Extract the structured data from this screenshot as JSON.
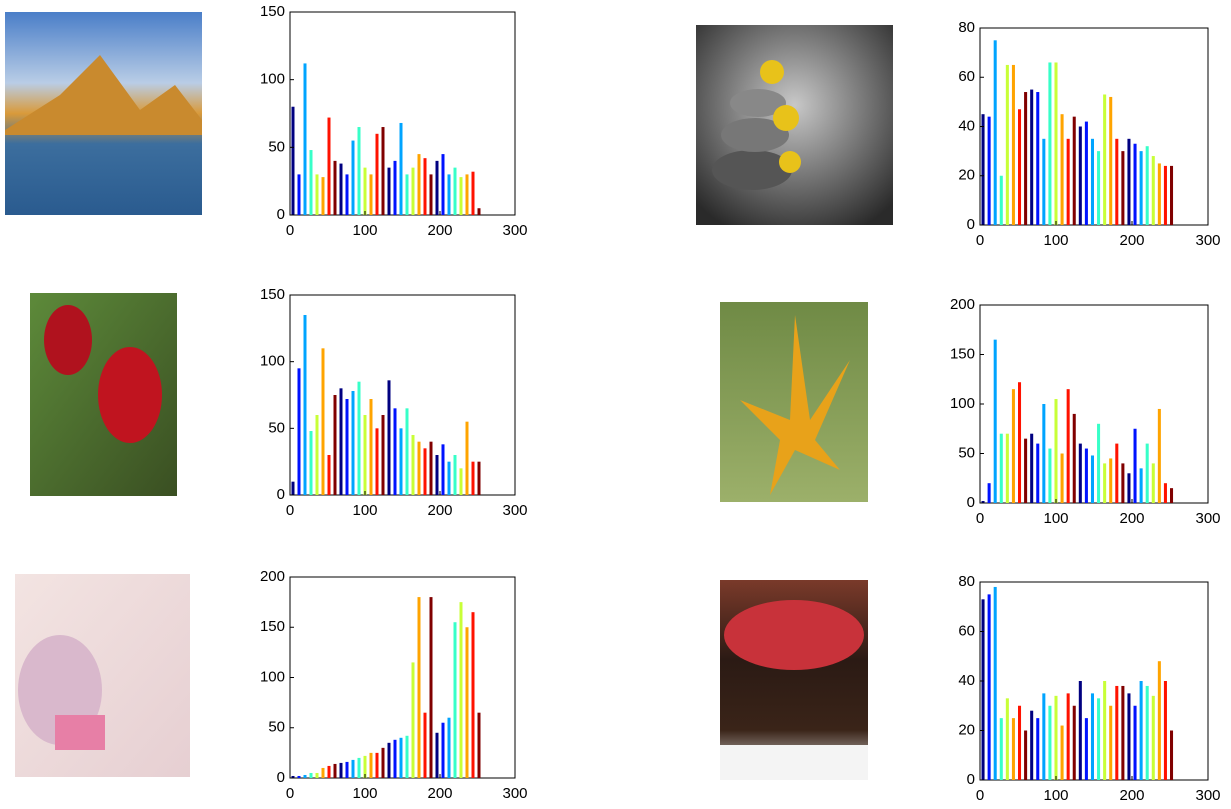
{
  "chart_data": [
    {
      "type": "bar",
      "colormap": "jet",
      "x": [
        4,
        12,
        20,
        28,
        36,
        44,
        52,
        60,
        68,
        76,
        84,
        92,
        100,
        108,
        116,
        124,
        132,
        140,
        148,
        156,
        164,
        172,
        180,
        188,
        196,
        204,
        212,
        220,
        228,
        236,
        244,
        252
      ],
      "values": [
        80,
        30,
        112,
        48,
        30,
        28,
        72,
        40,
        38,
        30,
        55,
        65,
        35,
        30,
        60,
        65,
        35,
        40,
        68,
        30,
        35,
        45,
        42,
        30,
        40,
        45,
        30,
        35,
        28,
        30,
        32,
        5
      ],
      "xlim": [
        0,
        300
      ],
      "ylim": [
        0,
        150
      ],
      "xticks": [
        0,
        100,
        200,
        300
      ],
      "yticks": [
        0,
        50,
        100,
        150
      ]
    },
    {
      "type": "bar",
      "colormap": "jet",
      "x": [
        4,
        12,
        20,
        28,
        36,
        44,
        52,
        60,
        68,
        76,
        84,
        92,
        100,
        108,
        116,
        124,
        132,
        140,
        148,
        156,
        164,
        172,
        180,
        188,
        196,
        204,
        212,
        220,
        228,
        236,
        244,
        252
      ],
      "values": [
        45,
        44,
        75,
        20,
        65,
        65,
        47,
        54,
        55,
        54,
        35,
        66,
        66,
        45,
        35,
        44,
        40,
        42,
        35,
        30,
        53,
        52,
        35,
        30,
        35,
        33,
        30,
        32,
        28,
        25,
        24,
        24
      ],
      "xlim": [
        0,
        300
      ],
      "ylim": [
        0,
        80
      ],
      "xticks": [
        0,
        100,
        200,
        300
      ],
      "yticks": [
        0,
        20,
        40,
        60,
        80
      ]
    },
    {
      "type": "bar",
      "colormap": "jet",
      "x": [
        4,
        12,
        20,
        28,
        36,
        44,
        52,
        60,
        68,
        76,
        84,
        92,
        100,
        108,
        116,
        124,
        132,
        140,
        148,
        156,
        164,
        172,
        180,
        188,
        196,
        204,
        212,
        220,
        228,
        236,
        244,
        252
      ],
      "values": [
        10,
        95,
        135,
        48,
        60,
        110,
        30,
        75,
        80,
        72,
        78,
        85,
        60,
        72,
        50,
        60,
        86,
        65,
        50,
        65,
        45,
        40,
        35,
        40,
        30,
        38,
        25,
        30,
        20,
        55,
        25,
        25
      ],
      "xlim": [
        0,
        300
      ],
      "ylim": [
        0,
        150
      ],
      "xticks": [
        0,
        100,
        200,
        300
      ],
      "yticks": [
        0,
        50,
        100,
        150
      ]
    },
    {
      "type": "bar",
      "colormap": "jet",
      "x": [
        4,
        12,
        20,
        28,
        36,
        44,
        52,
        60,
        68,
        76,
        84,
        92,
        100,
        108,
        116,
        124,
        132,
        140,
        148,
        156,
        164,
        172,
        180,
        188,
        196,
        204,
        212,
        220,
        228,
        236,
        244,
        252
      ],
      "values": [
        2,
        20,
        165,
        70,
        70,
        115,
        122,
        65,
        70,
        60,
        100,
        55,
        105,
        50,
        115,
        90,
        60,
        55,
        48,
        80,
        40,
        45,
        60,
        40,
        30,
        75,
        35,
        60,
        40,
        95,
        20,
        15
      ],
      "xlim": [
        0,
        300
      ],
      "ylim": [
        0,
        200
      ],
      "xticks": [
        0,
        100,
        200,
        300
      ],
      "yticks": [
        0,
        50,
        100,
        150,
        200
      ]
    },
    {
      "type": "bar",
      "colormap": "jet",
      "x": [
        4,
        12,
        20,
        28,
        36,
        44,
        52,
        60,
        68,
        76,
        84,
        92,
        100,
        108,
        116,
        124,
        132,
        140,
        148,
        156,
        164,
        172,
        180,
        188,
        196,
        204,
        212,
        220,
        228,
        236,
        244,
        252
      ],
      "values": [
        2,
        2,
        3,
        5,
        5,
        10,
        12,
        14,
        15,
        16,
        18,
        20,
        22,
        25,
        25,
        30,
        35,
        38,
        40,
        42,
        115,
        180,
        65,
        180,
        45,
        55,
        60,
        155,
        175,
        150,
        165,
        65
      ],
      "xlim": [
        0,
        300
      ],
      "ylim": [
        0,
        200
      ],
      "xticks": [
        0,
        100,
        200,
        300
      ],
      "yticks": [
        0,
        50,
        100,
        150,
        200
      ]
    },
    {
      "type": "bar",
      "colormap": "jet",
      "x": [
        4,
        12,
        20,
        28,
        36,
        44,
        52,
        60,
        68,
        76,
        84,
        92,
        100,
        108,
        116,
        124,
        132,
        140,
        148,
        156,
        164,
        172,
        180,
        188,
        196,
        204,
        212,
        220,
        228,
        236,
        244,
        252
      ],
      "values": [
        73,
        75,
        78,
        25,
        33,
        25,
        30,
        20,
        28,
        25,
        35,
        30,
        34,
        22,
        35,
        30,
        40,
        25,
        35,
        33,
        40,
        30,
        38,
        38,
        35,
        30,
        40,
        38,
        34,
        48,
        40,
        20
      ],
      "xlim": [
        0,
        300
      ],
      "ylim": [
        0,
        80
      ],
      "xticks": [
        0,
        100,
        200,
        300
      ],
      "yticks": [
        0,
        20,
        40,
        60,
        80
      ]
    }
  ]
}
